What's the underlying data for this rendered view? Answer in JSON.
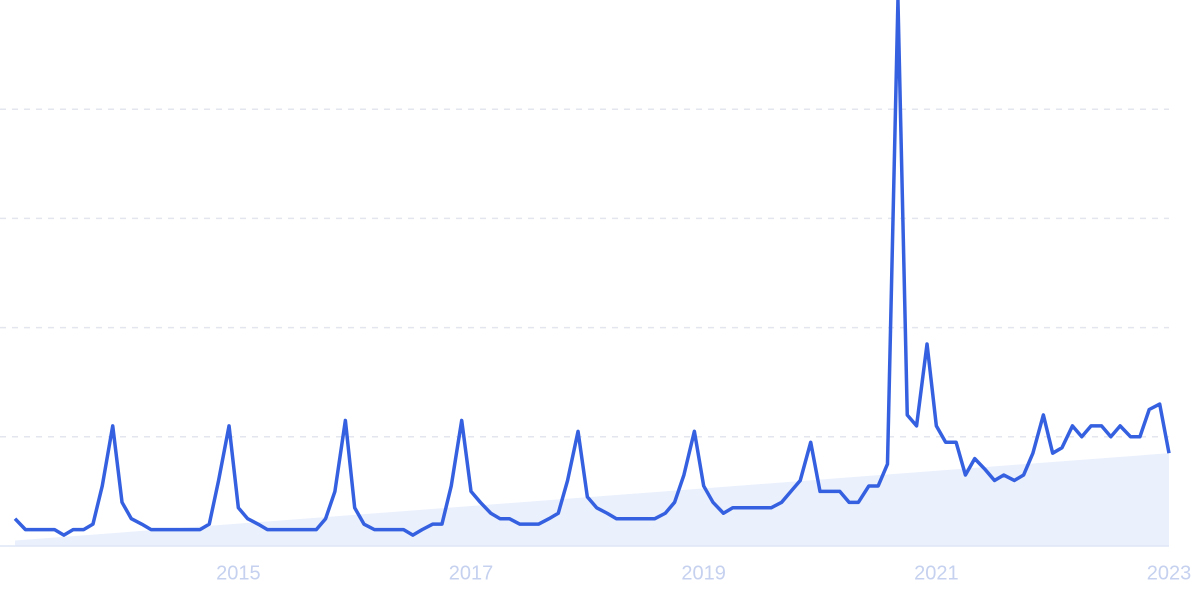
{
  "chart_data": {
    "type": "line",
    "x": [
      2013.08,
      2013.17,
      2013.25,
      2013.33,
      2013.42,
      2013.5,
      2013.58,
      2013.67,
      2013.75,
      2013.83,
      2013.92,
      2014,
      2014.08,
      2014.17,
      2014.25,
      2014.33,
      2014.42,
      2014.5,
      2014.58,
      2014.67,
      2014.75,
      2014.83,
      2014.92,
      2015,
      2015.08,
      2015.17,
      2015.25,
      2015.33,
      2015.42,
      2015.5,
      2015.58,
      2015.67,
      2015.75,
      2015.83,
      2015.92,
      2016,
      2016.08,
      2016.17,
      2016.25,
      2016.33,
      2016.42,
      2016.5,
      2016.58,
      2016.67,
      2016.75,
      2016.83,
      2016.92,
      2017,
      2017.08,
      2017.17,
      2017.25,
      2017.33,
      2017.42,
      2017.5,
      2017.58,
      2017.67,
      2017.75,
      2017.83,
      2017.92,
      2018,
      2018.08,
      2018.17,
      2018.25,
      2018.33,
      2018.42,
      2018.5,
      2018.58,
      2018.67,
      2018.75,
      2018.83,
      2018.92,
      2019,
      2019.08,
      2019.17,
      2019.25,
      2019.33,
      2019.42,
      2019.5,
      2019.58,
      2019.67,
      2019.75,
      2019.83,
      2019.92,
      2020,
      2020.08,
      2020.17,
      2020.25,
      2020.33,
      2020.42,
      2020.5,
      2020.58,
      2020.67,
      2020.75,
      2020.83,
      2020.92,
      2021,
      2021.08,
      2021.17,
      2021.25,
      2021.33,
      2021.42,
      2021.5,
      2021.58,
      2021.67,
      2021.75,
      2021.83,
      2021.92,
      2022,
      2022.08,
      2022.17,
      2022.25,
      2022.33,
      2022.42,
      2022.5,
      2022.58,
      2022.67,
      2022.75,
      2022.83,
      2022.92,
      2023
    ],
    "values": [
      5,
      3,
      3,
      3,
      3,
      2,
      3,
      3,
      4,
      11,
      22,
      8,
      5,
      4,
      3,
      3,
      3,
      3,
      3,
      3,
      4,
      12,
      22,
      7,
      5,
      4,
      3,
      3,
      3,
      3,
      3,
      3,
      5,
      10,
      23,
      7,
      4,
      3,
      3,
      3,
      3,
      2,
      3,
      4,
      4,
      11,
      23,
      10,
      8,
      6,
      5,
      5,
      4,
      4,
      4,
      5,
      6,
      12,
      21,
      9,
      7,
      6,
      5,
      5,
      5,
      5,
      5,
      6,
      8,
      13,
      21,
      11,
      8,
      6,
      7,
      7,
      7,
      7,
      7,
      8,
      10,
      12,
      19,
      10,
      10,
      10,
      8,
      8,
      11,
      11,
      15,
      100,
      24,
      22,
      37,
      22,
      19,
      19,
      13,
      16,
      14,
      12,
      13,
      12,
      13,
      17,
      24,
      17,
      18,
      22,
      20,
      22,
      22,
      20,
      22,
      20,
      20,
      25,
      26,
      17
    ],
    "color": "#3560e0",
    "trend": {
      "values": [
        1,
        17
      ],
      "color": "#eaf0fc"
    },
    "xlim": [
      2013.08,
      2023
    ],
    "xticks": [
      2015,
      2017,
      2019,
      2021,
      2023
    ],
    "ylim": [
      0,
      100
    ],
    "yticks": [
      0,
      20,
      40,
      60,
      80
    ],
    "grid": true
  }
}
